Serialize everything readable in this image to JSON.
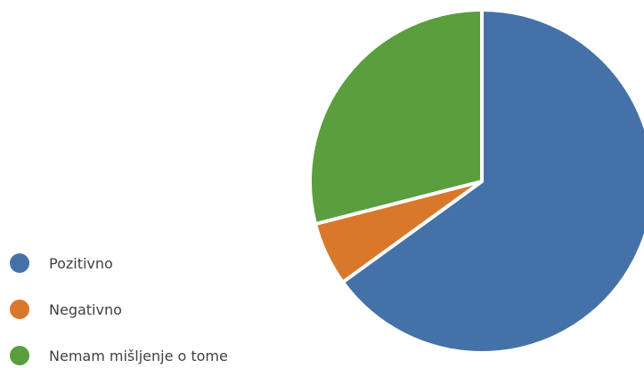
{
  "chart_data": {
    "type": "pie",
    "title": "",
    "legend_position": "bottom-left",
    "slices": [
      {
        "label": "Pozitivno",
        "value": 65,
        "color": "#4472a8"
      },
      {
        "label": "Negativno",
        "value": 6,
        "color": "#d9772b"
      },
      {
        "label": "Nemam mišljenje o tome",
        "value": 29,
        "color": "#5a9e3e"
      }
    ]
  }
}
